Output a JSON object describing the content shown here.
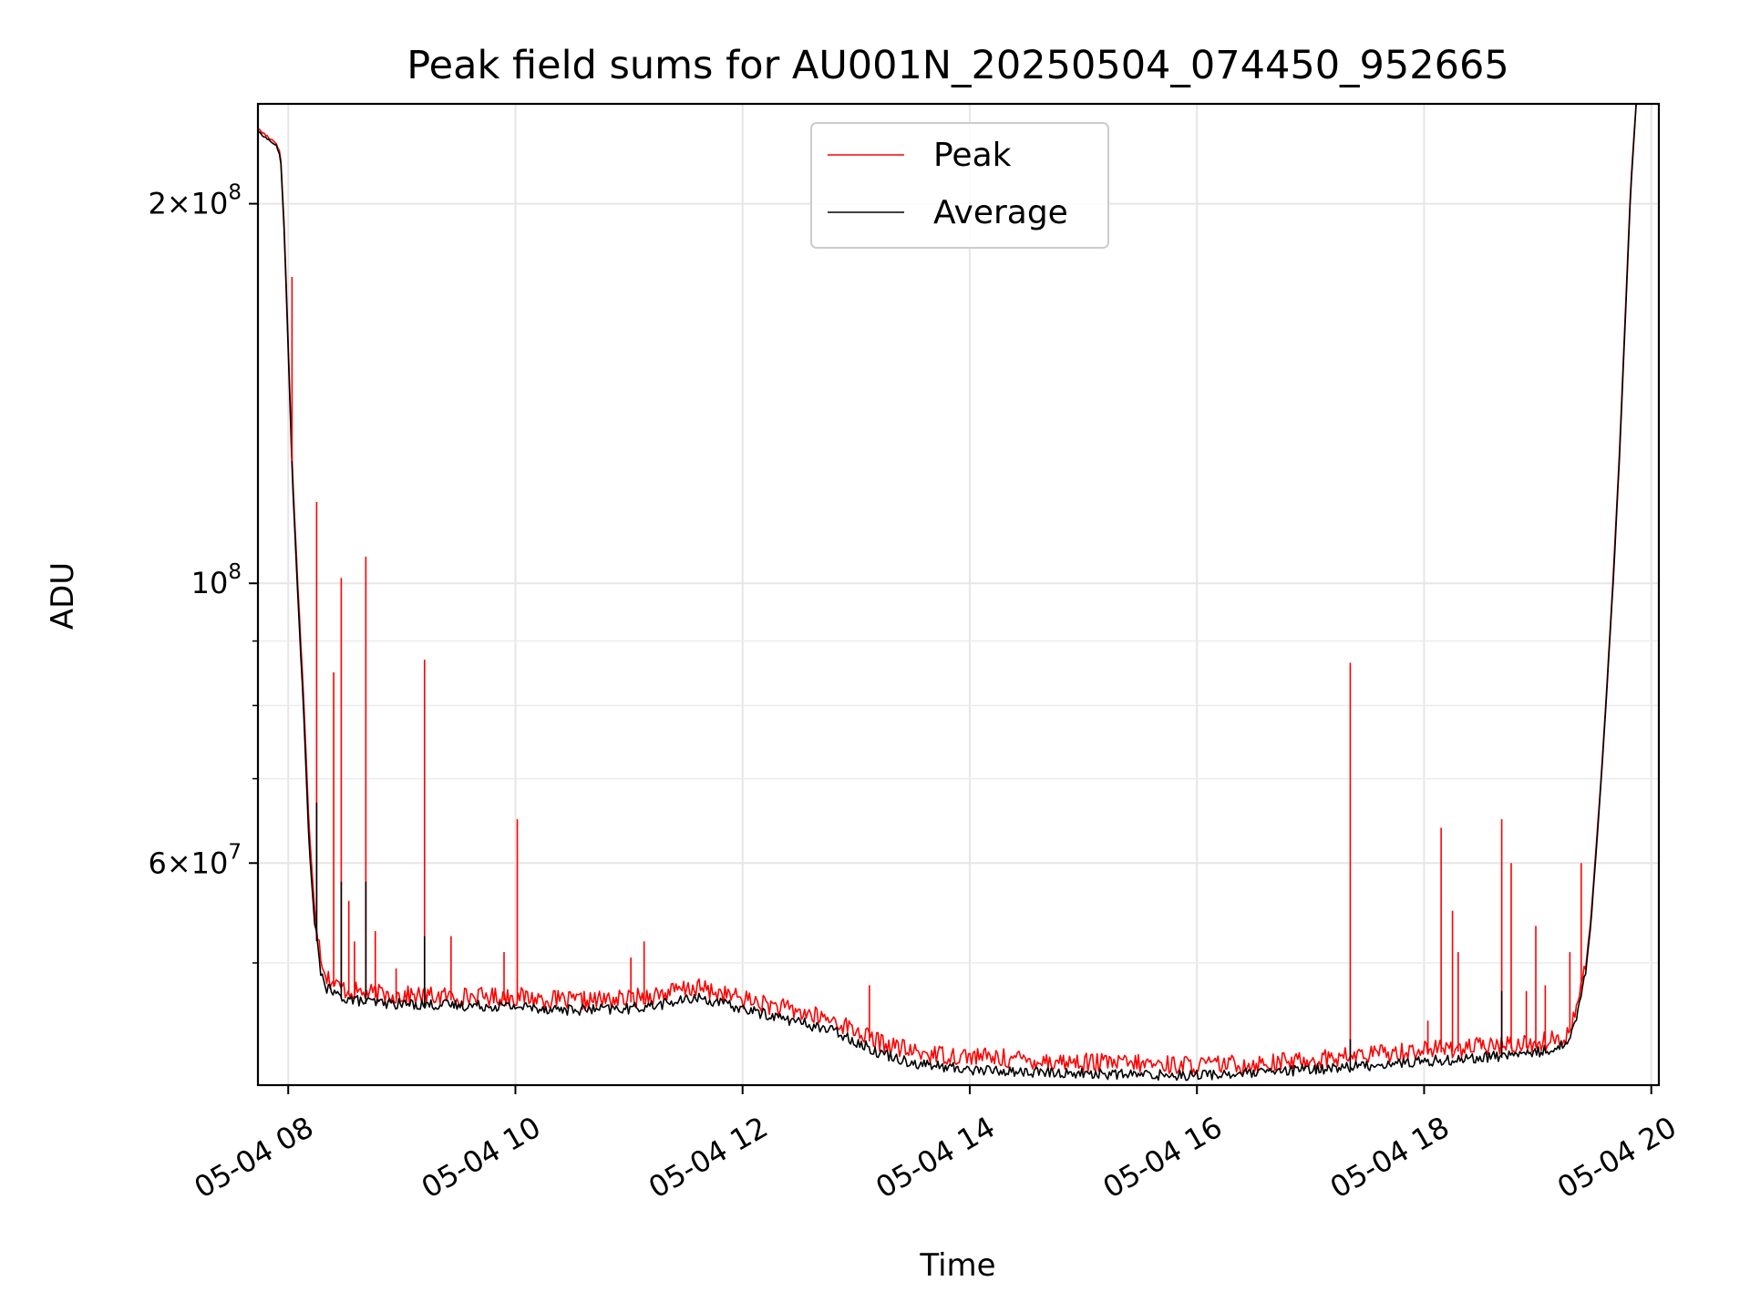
{
  "chart_data": {
    "type": "line",
    "title": "Peak field sums for AU001N_20250504_074450_952665",
    "xlabel": "Time",
    "ylabel": "ADU",
    "yscale": "log",
    "grid": true,
    "legend_position": "top-center",
    "xlim": [
      "2025-05-04T07:44",
      "2025-05-04T20:04"
    ],
    "ylim": [
      40000000,
      240000000
    ],
    "x_ticks": [
      {
        "value": "2025-05-04T08:00",
        "label": "05-04 08"
      },
      {
        "value": "2025-05-04T10:00",
        "label": "05-04 10"
      },
      {
        "value": "2025-05-04T12:00",
        "label": "05-04 12"
      },
      {
        "value": "2025-05-04T14:00",
        "label": "05-04 14"
      },
      {
        "value": "2025-05-04T16:00",
        "label": "05-04 16"
      },
      {
        "value": "2025-05-04T18:00",
        "label": "05-04 18"
      },
      {
        "value": "2025-05-04T20:00",
        "label": "05-04 20"
      }
    ],
    "y_ticks": [
      {
        "value": 60000000,
        "base": "6×10",
        "exp": "7"
      },
      {
        "value": 100000000,
        "base": "10",
        "exp": "8"
      },
      {
        "value": 200000000,
        "base": "2×10",
        "exp": "8"
      }
    ],
    "y_minor_ticks": [
      50000000,
      70000000,
      80000000,
      90000000
    ],
    "series": [
      {
        "name": "Peak",
        "color": "#ff0000",
        "x": [
          "2025-05-04T07:44",
          "2025-05-04T07:54",
          "2025-05-04T07:56",
          "2025-05-04T07:58",
          "2025-05-04T08:00",
          "2025-05-04T08:02",
          "2025-05-04T08:05",
          "2025-05-04T08:08",
          "2025-05-04T08:11",
          "2025-05-04T08:14",
          "2025-05-04T08:17",
          "2025-05-04T08:20",
          "2025-05-04T08:25",
          "2025-05-04T08:30",
          "2025-05-04T08:40",
          "2025-05-04T09:00",
          "2025-05-04T09:30",
          "2025-05-04T10:00",
          "2025-05-04T10:30",
          "2025-05-04T11:00",
          "2025-05-04T11:30",
          "2025-05-04T11:35",
          "2025-05-04T12:00",
          "2025-05-04T12:30",
          "2025-05-04T12:50",
          "2025-05-04T13:10",
          "2025-05-04T13:30",
          "2025-05-04T13:45",
          "2025-05-04T14:00",
          "2025-05-04T14:30",
          "2025-05-04T15:00",
          "2025-05-04T15:30",
          "2025-05-04T16:00",
          "2025-05-04T16:30",
          "2025-05-04T17:00",
          "2025-05-04T17:30",
          "2025-05-04T18:00",
          "2025-05-04T18:30",
          "2025-05-04T19:00",
          "2025-05-04T19:15",
          "2025-05-04T19:20",
          "2025-05-04T19:25",
          "2025-05-04T19:28",
          "2025-05-04T19:31",
          "2025-05-04T19:34",
          "2025-05-04T19:37",
          "2025-05-04T19:40",
          "2025-05-04T19:43",
          "2025-05-04T19:46",
          "2025-05-04T19:49",
          "2025-05-04T19:52"
        ],
        "y": [
          229000000,
          223000000,
          218000000,
          190000000,
          155000000,
          125000000,
          100000000,
          82000000,
          64000000,
          55000000,
          50500000,
          48500000,
          47700000,
          47300000,
          47000000,
          46800000,
          46700000,
          46700000,
          46300000,
          46500000,
          47300000,
          47500000,
          46500000,
          45400000,
          44600000,
          43100000,
          42200000,
          42000000,
          41900000,
          41600000,
          41400000,
          41300000,
          41200000,
          41300000,
          41600000,
          42000000,
          42400000,
          42600000,
          42900000,
          43400000,
          45500000,
          49000000,
          54000000,
          62000000,
          72000000,
          85000000,
          102000000,
          125000000,
          160000000,
          205000000,
          240000000
        ]
      },
      {
        "name": "Average",
        "color": "#000000",
        "x": [
          "2025-05-04T07:44",
          "2025-05-04T07:54",
          "2025-05-04T07:56",
          "2025-05-04T07:58",
          "2025-05-04T08:00",
          "2025-05-04T08:02",
          "2025-05-04T08:05",
          "2025-05-04T08:08",
          "2025-05-04T08:11",
          "2025-05-04T08:14",
          "2025-05-04T08:17",
          "2025-05-04T08:20",
          "2025-05-04T08:25",
          "2025-05-04T08:30",
          "2025-05-04T08:40",
          "2025-05-04T09:00",
          "2025-05-04T09:30",
          "2025-05-04T10:00",
          "2025-05-04T10:30",
          "2025-05-04T11:00",
          "2025-05-04T11:30",
          "2025-05-04T11:35",
          "2025-05-04T12:00",
          "2025-05-04T12:30",
          "2025-05-04T12:50",
          "2025-05-04T13:10",
          "2025-05-04T13:30",
          "2025-05-04T13:45",
          "2025-05-04T14:00",
          "2025-05-04T14:30",
          "2025-05-04T15:00",
          "2025-05-04T15:30",
          "2025-05-04T16:00",
          "2025-05-04T16:30",
          "2025-05-04T17:00",
          "2025-05-04T17:30",
          "2025-05-04T18:00",
          "2025-05-04T18:30",
          "2025-05-04T19:00",
          "2025-05-04T19:15",
          "2025-05-04T19:20",
          "2025-05-04T19:25",
          "2025-05-04T19:28",
          "2025-05-04T19:31",
          "2025-05-04T19:34",
          "2025-05-04T19:37",
          "2025-05-04T19:40",
          "2025-05-04T19:43",
          "2025-05-04T19:46",
          "2025-05-04T19:49",
          "2025-05-04T19:52"
        ],
        "y": [
          228000000,
          222000000,
          217000000,
          188000000,
          153000000,
          123000000,
          98000000,
          80000000,
          62000000,
          53500000,
          49200000,
          47600000,
          47000000,
          46700000,
          46400000,
          46200000,
          46100000,
          46000000,
          45700000,
          45800000,
          46500000,
          46800000,
          45800000,
          44700000,
          43900000,
          42400000,
          41500000,
          41200000,
          41000000,
          40800000,
          40700000,
          40600000,
          40600000,
          40700000,
          41000000,
          41300000,
          41600000,
          41900000,
          42300000,
          42900000,
          45000000,
          48500000,
          53500000,
          61500000,
          71500000,
          84500000,
          101000000,
          124000000,
          158000000,
          203000000,
          240000000
        ]
      }
    ],
    "spikes": [
      {
        "x": "2025-05-04T08:02",
        "y": 175000000,
        "series": "Peak"
      },
      {
        "x": "2025-05-04T08:15",
        "y": 116000000,
        "series": "Peak"
      },
      {
        "x": "2025-05-04T08:15",
        "y": 67000000,
        "series": "Average"
      },
      {
        "x": "2025-05-04T08:24",
        "y": 85000000,
        "series": "Peak"
      },
      {
        "x": "2025-05-04T08:28",
        "y": 101000000,
        "series": "Peak"
      },
      {
        "x": "2025-05-04T08:28",
        "y": 58000000,
        "series": "Average"
      },
      {
        "x": "2025-05-04T08:32",
        "y": 56000000,
        "series": "Peak"
      },
      {
        "x": "2025-05-04T08:35",
        "y": 52000000,
        "series": "Peak"
      },
      {
        "x": "2025-05-04T08:41",
        "y": 105000000,
        "series": "Peak"
      },
      {
        "x": "2025-05-04T08:41",
        "y": 58000000,
        "series": "Average"
      },
      {
        "x": "2025-05-04T08:46",
        "y": 53000000,
        "series": "Peak"
      },
      {
        "x": "2025-05-04T08:57",
        "y": 49500000,
        "series": "Peak"
      },
      {
        "x": "2025-05-04T09:12",
        "y": 87000000,
        "series": "Peak"
      },
      {
        "x": "2025-05-04T09:12",
        "y": 52500000,
        "series": "Average"
      },
      {
        "x": "2025-05-04T09:26",
        "y": 52500000,
        "series": "Peak"
      },
      {
        "x": "2025-05-04T09:54",
        "y": 51000000,
        "series": "Peak"
      },
      {
        "x": "2025-05-04T10:01",
        "y": 65000000,
        "series": "Peak"
      },
      {
        "x": "2025-05-04T11:01",
        "y": 50500000,
        "series": "Peak"
      },
      {
        "x": "2025-05-04T11:08",
        "y": 52000000,
        "series": "Peak"
      },
      {
        "x": "2025-05-04T13:07",
        "y": 48000000,
        "series": "Peak"
      },
      {
        "x": "2025-05-04T17:21",
        "y": 86500000,
        "series": "Peak"
      },
      {
        "x": "2025-05-04T17:21",
        "y": 43500000,
        "series": "Average"
      },
      {
        "x": "2025-05-04T18:02",
        "y": 45000000,
        "series": "Peak"
      },
      {
        "x": "2025-05-04T18:09",
        "y": 64000000,
        "series": "Peak"
      },
      {
        "x": "2025-05-04T18:15",
        "y": 55000000,
        "series": "Peak"
      },
      {
        "x": "2025-05-04T18:18",
        "y": 51000000,
        "series": "Peak"
      },
      {
        "x": "2025-05-04T18:41",
        "y": 65000000,
        "series": "Peak"
      },
      {
        "x": "2025-05-04T18:41",
        "y": 47500000,
        "series": "Average"
      },
      {
        "x": "2025-05-04T18:46",
        "y": 60000000,
        "series": "Peak"
      },
      {
        "x": "2025-05-04T18:54",
        "y": 47500000,
        "series": "Peak"
      },
      {
        "x": "2025-05-04T18:59",
        "y": 53500000,
        "series": "Peak"
      },
      {
        "x": "2025-05-04T19:04",
        "y": 48000000,
        "series": "Peak"
      },
      {
        "x": "2025-05-04T19:17",
        "y": 51000000,
        "series": "Peak"
      },
      {
        "x": "2025-05-04T19:23",
        "y": 60000000,
        "series": "Peak"
      }
    ]
  }
}
